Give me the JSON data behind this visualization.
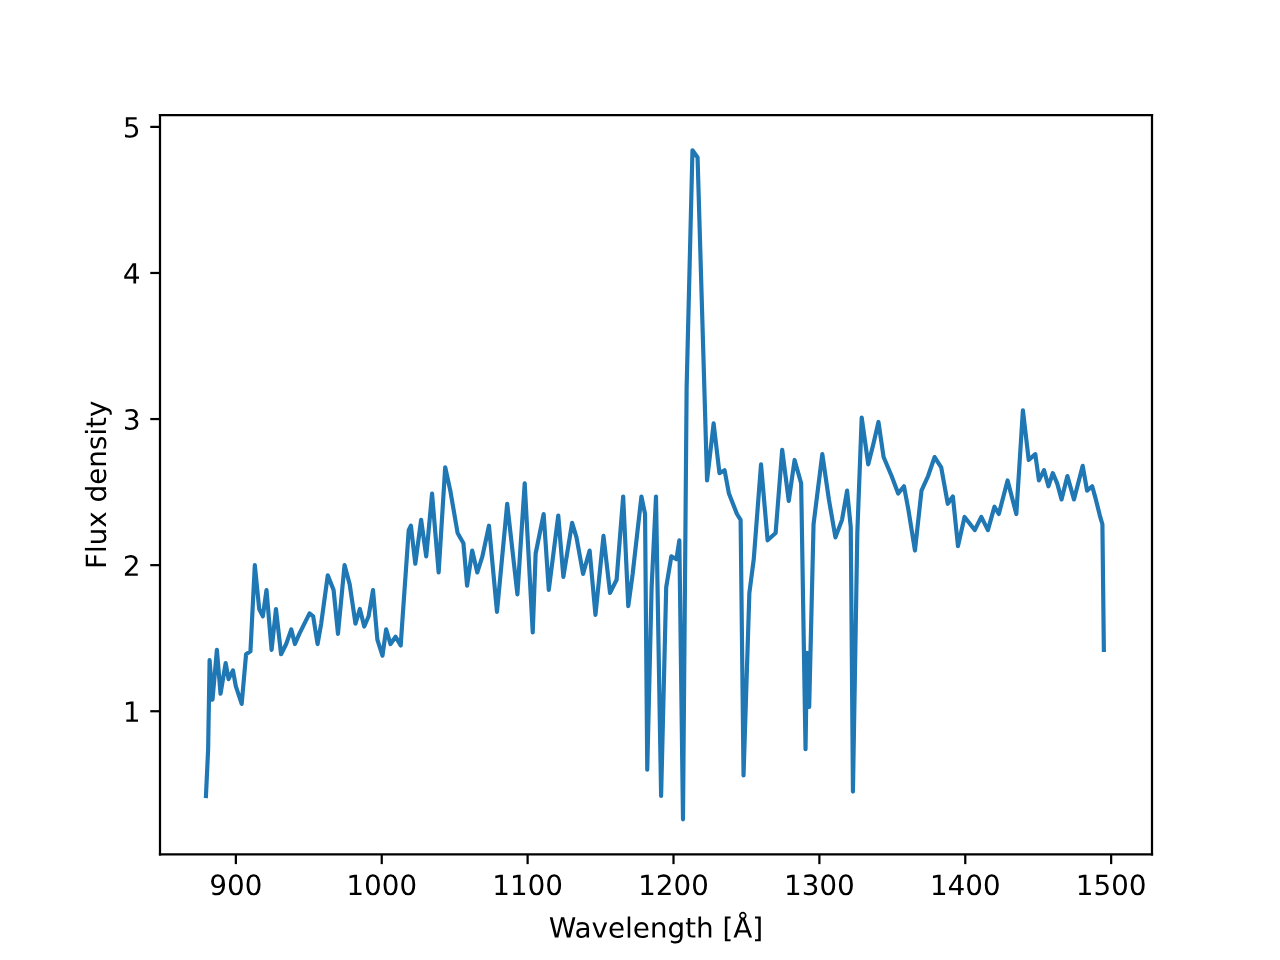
{
  "chart_data": {
    "type": "line",
    "xlabel": "Wavelength [Å]",
    "ylabel": "Flux density",
    "xlim": [
      848,
      1528
    ],
    "ylim": [
      0.02,
      5.08
    ],
    "xticks": [
      900,
      1000,
      1100,
      1200,
      1300,
      1400,
      1500
    ],
    "yticks": [
      1,
      2,
      3,
      4,
      5
    ],
    "grid": false,
    "series": [
      {
        "color": "#1f77b4",
        "x": [
          879.5,
          881,
          882,
          884,
          887,
          889.5,
          893,
          895,
          898,
          900,
          904,
          907,
          910,
          913,
          916,
          918.5,
          921,
          924.5,
          927.5,
          931,
          934.5,
          938,
          940.5,
          943.5,
          947,
          950.5,
          953,
          956,
          958.5,
          963,
          967,
          970,
          974.5,
          978,
          982,
          985,
          988,
          991,
          994,
          997,
          1000.5,
          1003,
          1006,
          1009.5,
          1013,
          1014,
          1018.5,
          1020,
          1023,
          1027,
          1030.5,
          1034.5,
          1039,
          1043.5,
          1047,
          1052,
          1056,
          1058.5,
          1062,
          1065.5,
          1069,
          1073.5,
          1079,
          1086,
          1093,
          1098,
          1103.5,
          1105.5,
          1111,
          1114.5,
          1121,
          1124.5,
          1130.5,
          1133.5,
          1138,
          1142.5,
          1146.5,
          1152,
          1156.5,
          1161,
          1165.5,
          1169,
          1172,
          1178,
          1180.5,
          1182,
          1185,
          1188,
          1191.5,
          1195,
          1198.5,
          1202,
          1204,
          1206.5,
          1209,
          1213,
          1216.5,
          1223,
          1227.5,
          1231.5,
          1235,
          1238,
          1243.5,
          1246,
          1248,
          1252,
          1255,
          1260,
          1264.5,
          1270,
          1274.5,
          1279,
          1283,
          1287.5,
          1290.5,
          1291.5,
          1293,
          1296,
          1302,
          1306.5,
          1311,
          1315.5,
          1319,
          1321.5,
          1323,
          1326,
          1329,
          1333.5,
          1337,
          1340.5,
          1344,
          1349.5,
          1354,
          1358,
          1361,
          1365.5,
          1370,
          1374.5,
          1379,
          1383.5,
          1388,
          1391.5,
          1395,
          1399.5,
          1406.5,
          1411,
          1415.5,
          1420,
          1423,
          1429,
          1435,
          1439.5,
          1443.5,
          1448,
          1450.5,
          1454,
          1457,
          1460,
          1463,
          1466,
          1470,
          1474.5,
          1480.5,
          1483.5,
          1487,
          1489.5,
          1492.5,
          1494,
          1495
        ],
        "values": [
          0.42,
          0.74,
          1.35,
          1.08,
          1.42,
          1.12,
          1.33,
          1.22,
          1.28,
          1.17,
          1.05,
          1.39,
          1.41,
          2.0,
          1.7,
          1.65,
          1.83,
          1.42,
          1.7,
          1.39,
          1.46,
          1.56,
          1.46,
          1.53,
          1.6,
          1.67,
          1.65,
          1.46,
          1.6,
          1.93,
          1.83,
          1.53,
          2.0,
          1.87,
          1.6,
          1.7,
          1.58,
          1.65,
          1.83,
          1.49,
          1.38,
          1.56,
          1.46,
          1.51,
          1.45,
          1.6,
          2.24,
          2.27,
          2.01,
          2.31,
          2.06,
          2.49,
          1.95,
          2.67,
          2.51,
          2.22,
          2.15,
          1.86,
          2.1,
          1.95,
          2.06,
          2.27,
          1.68,
          2.42,
          1.8,
          2.56,
          1.54,
          2.08,
          2.35,
          1.83,
          2.34,
          1.92,
          2.29,
          2.19,
          1.94,
          2.1,
          1.66,
          2.2,
          1.81,
          1.9,
          2.47,
          1.72,
          1.94,
          2.47,
          2.35,
          0.6,
          1.85,
          2.47,
          0.42,
          1.85,
          2.06,
          2.04,
          2.17,
          0.26,
          3.22,
          4.84,
          4.79,
          2.58,
          2.97,
          2.63,
          2.65,
          2.49,
          2.35,
          2.31,
          0.56,
          1.81,
          2.04,
          2.69,
          2.17,
          2.22,
          2.79,
          2.44,
          2.72,
          2.56,
          0.74,
          1.4,
          1.03,
          2.28,
          2.76,
          2.45,
          2.19,
          2.31,
          2.51,
          2.26,
          0.45,
          2.22,
          3.01,
          2.69,
          2.83,
          2.98,
          2.74,
          2.61,
          2.49,
          2.54,
          2.38,
          2.1,
          2.51,
          2.61,
          2.74,
          2.67,
          2.42,
          2.47,
          2.13,
          2.33,
          2.24,
          2.33,
          2.24,
          2.4,
          2.35,
          2.58,
          2.35,
          3.06,
          2.72,
          2.76,
          2.58,
          2.65,
          2.54,
          2.63,
          2.56,
          2.45,
          2.61,
          2.45,
          2.68,
          2.51,
          2.54,
          2.45,
          2.33,
          2.28,
          1.42
        ]
      }
    ]
  }
}
